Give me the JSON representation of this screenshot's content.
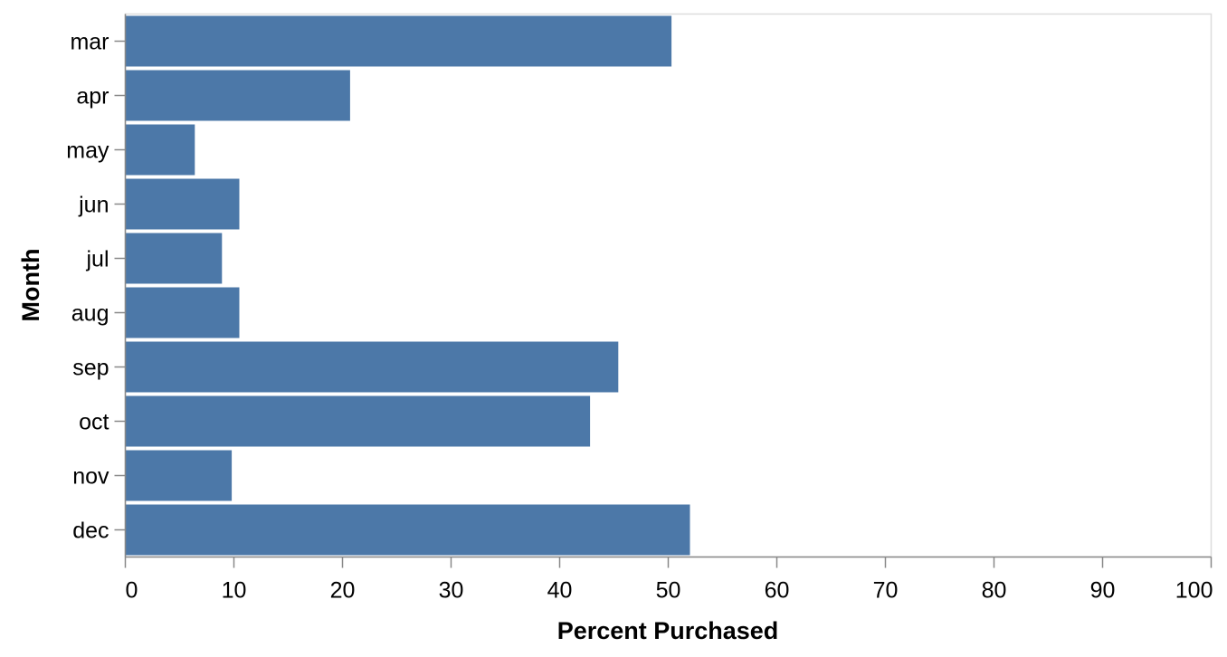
{
  "chart_data": {
    "type": "bar",
    "orientation": "horizontal",
    "categories": [
      "mar",
      "apr",
      "may",
      "jun",
      "jul",
      "aug",
      "sep",
      "oct",
      "nov",
      "dec"
    ],
    "values": [
      50.3,
      20.7,
      6.4,
      10.5,
      8.9,
      10.5,
      45.4,
      42.8,
      9.8,
      52.0
    ],
    "xlabel": "Percent Purchased",
    "ylabel": "Month",
    "xlim": [
      0,
      100
    ],
    "xticks": [
      0,
      10,
      20,
      30,
      40,
      50,
      60,
      70,
      80,
      90,
      100
    ],
    "bar_color": "#4c78a8",
    "axis_color": "#888888",
    "frame_color": "#dddddd",
    "grid": false,
    "legend": "none"
  }
}
